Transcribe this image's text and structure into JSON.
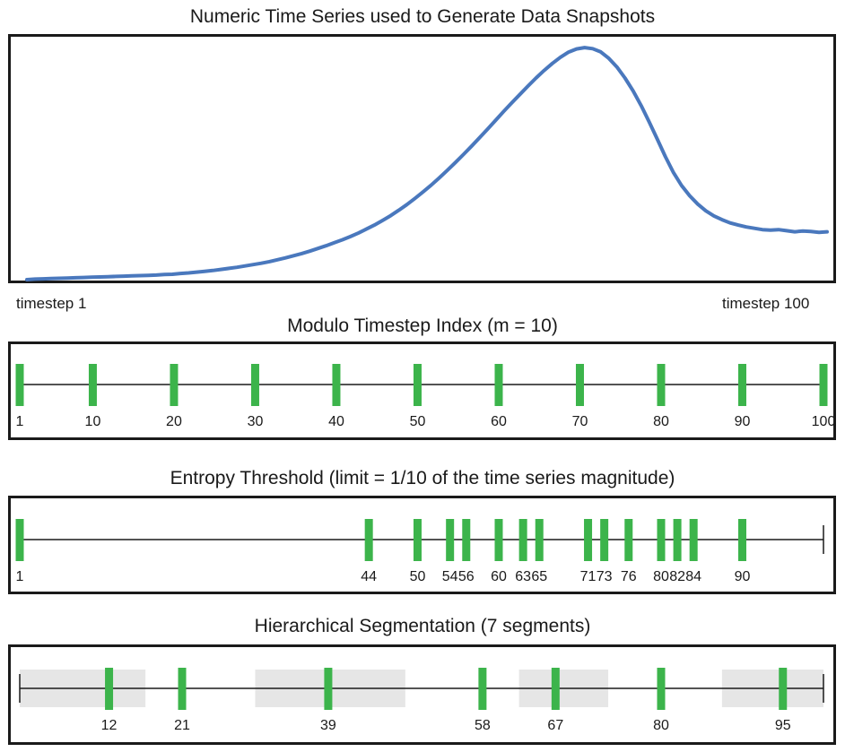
{
  "series_panel": {
    "title": "Numeric Time Series used to Generate Data Snapshots",
    "start_label": "timestep 1",
    "end_label": "timestep 100",
    "line_color": "#4a78bd"
  },
  "chart_data": {
    "type": "line",
    "x_range": [
      1,
      100
    ],
    "grid": false,
    "series": [
      {
        "values": [
          0.0,
          0.2,
          0.3,
          0.4,
          0.5,
          0.6,
          0.7,
          0.8,
          0.9,
          1.0,
          1.1,
          1.2,
          1.3,
          1.4,
          1.5,
          1.6,
          1.7,
          1.9,
          2.0,
          2.3,
          2.5,
          2.8,
          3.1,
          3.4,
          3.8,
          4.2,
          4.6,
          5.1,
          5.6,
          6.1,
          6.7,
          7.4,
          8.1,
          8.9,
          9.7,
          10.6,
          11.6,
          12.6,
          13.7,
          14.8,
          16.0,
          17.3,
          18.8,
          20.3,
          22.0,
          23.8,
          25.8,
          27.9,
          30.2,
          32.6,
          35.1,
          37.8,
          40.6,
          43.5,
          46.5,
          49.6,
          52.8,
          56.0,
          59.3,
          62.6,
          65.8,
          68.9,
          72.0,
          75.0,
          77.8,
          80.4,
          82.7,
          84.6,
          85.8,
          86.3,
          85.9,
          84.7,
          82.3,
          79.1,
          75.0,
          70.2,
          64.7,
          58.6,
          52.2,
          45.7,
          39.8,
          35.0,
          31.2,
          28.1,
          25.6,
          23.7,
          22.3,
          21.1,
          20.3,
          19.6,
          19.1,
          18.6,
          18.4,
          18.6,
          18.2,
          17.8,
          18.1,
          17.9,
          17.6,
          17.8
        ]
      }
    ]
  },
  "modulo": {
    "title": "Modulo Timestep Index (m = 10)",
    "marks": [
      1,
      10,
      20,
      30,
      40,
      50,
      60,
      70,
      80,
      90,
      100
    ],
    "mark_color": "#3cb44b"
  },
  "entropy": {
    "title": "Entropy Threshold (limit = 1/10 of the time series magnitude)",
    "marks": [
      1,
      44,
      50,
      54,
      56,
      60,
      63,
      65,
      71,
      73,
      76,
      80,
      82,
      84,
      90
    ],
    "mark_color": "#3cb44b"
  },
  "hierarchical": {
    "title": "Hierarchical Segmentation (7 segments)",
    "marks": [
      12,
      21,
      39,
      58,
      67,
      80,
      95
    ],
    "segment_shading": [
      "#e6e6e6",
      "#ffffff",
      "#e6e6e6",
      "#ffffff",
      "#e6e6e6",
      "#ffffff",
      "#e6e6e6"
    ],
    "mark_color": "#3cb44b"
  }
}
